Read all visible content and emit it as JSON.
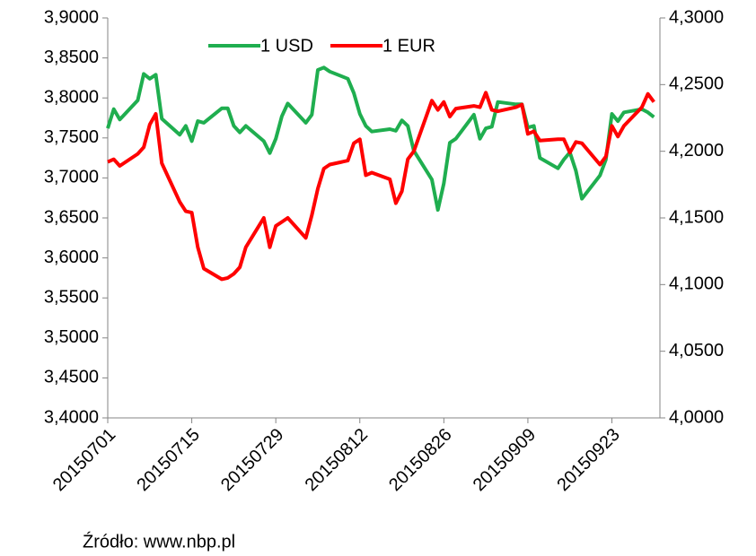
{
  "chart_data": {
    "type": "line",
    "x": [
      "20150701",
      "20150702",
      "20150703",
      "20150706",
      "20150707",
      "20150708",
      "20150709",
      "20150710",
      "20150713",
      "20150714",
      "20150715",
      "20150716",
      "20150717",
      "20150720",
      "20150721",
      "20150722",
      "20150723",
      "20150724",
      "20150727",
      "20150728",
      "20150729",
      "20150730",
      "20150731",
      "20150803",
      "20150804",
      "20150805",
      "20150806",
      "20150807",
      "20150810",
      "20150811",
      "20150812",
      "20150813",
      "20150814",
      "20150817",
      "20150818",
      "20150819",
      "20150820",
      "20150821",
      "20150824",
      "20150825",
      "20150826",
      "20150827",
      "20150828",
      "20150831",
      "20150901",
      "20150902",
      "20150903",
      "20150904",
      "20150907",
      "20150908",
      "20150909",
      "20150910",
      "20150911",
      "20150914",
      "20150915",
      "20150916",
      "20150917",
      "20150918",
      "20150921",
      "20150922",
      "20150923",
      "20150924",
      "20150925",
      "20150928",
      "20150929",
      "20150930"
    ],
    "series": [
      {
        "name": "1 USD",
        "color": "#1fae4f",
        "axis": "y",
        "values": [
          3.762,
          3.786,
          3.773,
          3.797,
          3.83,
          3.824,
          3.829,
          3.774,
          3.754,
          3.765,
          3.746,
          3.771,
          3.769,
          3.787,
          3.787,
          3.765,
          3.757,
          3.765,
          3.746,
          3.731,
          3.749,
          3.777,
          3.793,
          3.769,
          3.779,
          3.835,
          3.838,
          3.833,
          3.824,
          3.806,
          3.78,
          3.765,
          3.758,
          3.761,
          3.759,
          3.772,
          3.765,
          3.734,
          3.698,
          3.66,
          3.693,
          3.744,
          3.749,
          3.779,
          3.749,
          3.762,
          3.764,
          3.795,
          3.792,
          3.792,
          3.763,
          3.765,
          3.725,
          3.712,
          3.723,
          3.732,
          3.709,
          3.674,
          3.703,
          3.723,
          3.78,
          3.771,
          3.782,
          3.786,
          3.782,
          3.776
        ]
      },
      {
        "name": "1 EUR",
        "color": "#ff0000",
        "axis": "y2",
        "values": [
          4.192,
          4.194,
          4.189,
          4.198,
          4.203,
          4.22,
          4.228,
          4.191,
          4.162,
          4.155,
          4.154,
          4.128,
          4.112,
          4.104,
          4.105,
          4.108,
          4.113,
          4.128,
          4.15,
          4.128,
          4.144,
          4.147,
          4.15,
          4.135,
          4.152,
          4.172,
          4.187,
          4.19,
          4.193,
          4.206,
          4.209,
          4.182,
          4.184,
          4.179,
          4.161,
          4.17,
          4.194,
          4.2,
          4.238,
          4.231,
          4.237,
          4.226,
          4.232,
          4.234,
          4.233,
          4.244,
          4.231,
          4.23,
          4.233,
          4.235,
          4.213,
          4.215,
          4.208,
          4.209,
          4.209,
          4.199,
          4.207,
          4.206,
          4.19,
          4.196,
          4.219,
          4.211,
          4.219,
          4.233,
          4.243,
          4.237
        ]
      }
    ],
    "xlim": [
      "20150701",
      "20151001"
    ],
    "xticks": [
      "20150701",
      "20150715",
      "20150729",
      "20150812",
      "20150826",
      "20150909",
      "20150923"
    ],
    "ylim": [
      3.4,
      3.9
    ],
    "yticks": [
      {
        "value": 3.4,
        "label": "3,4000"
      },
      {
        "value": 3.45,
        "label": "3,4500"
      },
      {
        "value": 3.5,
        "label": "3,5000"
      },
      {
        "value": 3.55,
        "label": "3,5500"
      },
      {
        "value": 3.6,
        "label": "3,6000"
      },
      {
        "value": 3.65,
        "label": "3,6500"
      },
      {
        "value": 3.7,
        "label": "3,7000"
      },
      {
        "value": 3.75,
        "label": "3,7500"
      },
      {
        "value": 3.8,
        "label": "3,8000"
      },
      {
        "value": 3.85,
        "label": "3,8500"
      },
      {
        "value": 3.9,
        "label": "3,9000"
      }
    ],
    "y2lim": [
      4.0,
      4.3
    ],
    "y2ticks": [
      {
        "value": 4.0,
        "label": "4,0000"
      },
      {
        "value": 4.05,
        "label": "4,0500"
      },
      {
        "value": 4.1,
        "label": "4,1000"
      },
      {
        "value": 4.15,
        "label": "4,1500"
      },
      {
        "value": 4.2,
        "label": "4,2000"
      },
      {
        "value": 4.25,
        "label": "4,2500"
      },
      {
        "value": 4.3,
        "label": "4,3000"
      }
    ],
    "legend": "top",
    "source": "Źródło: www.nbp.pl"
  }
}
